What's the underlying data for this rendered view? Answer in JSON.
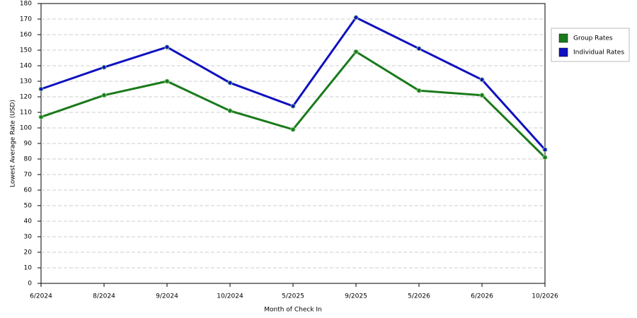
{
  "chart_data": {
    "type": "line",
    "x_label": "Month of Check In",
    "y_label": "Lowest Average Rate (USD)",
    "categories": [
      "6/2024",
      "8/2024",
      "9/2024",
      "10/2024",
      "5/2025",
      "9/2025",
      "5/2026",
      "6/2026",
      "10/2026"
    ],
    "series": [
      {
        "name": "Group Rates",
        "color": "#1a7a1a",
        "values": [
          107,
          121,
          130,
          111,
          99,
          149,
          124,
          121,
          81
        ]
      },
      {
        "name": "Individual Rates",
        "color": "#1010c0",
        "values": [
          125,
          139,
          152,
          129,
          114,
          171,
          151,
          131,
          86
        ]
      }
    ],
    "ylim": [
      0,
      180
    ],
    "yticks": [
      0,
      10,
      20,
      30,
      40,
      50,
      60,
      70,
      80,
      90,
      100,
      110,
      120,
      130,
      140,
      150,
      160,
      170,
      180
    ],
    "grid": true,
    "legend": "right"
  }
}
